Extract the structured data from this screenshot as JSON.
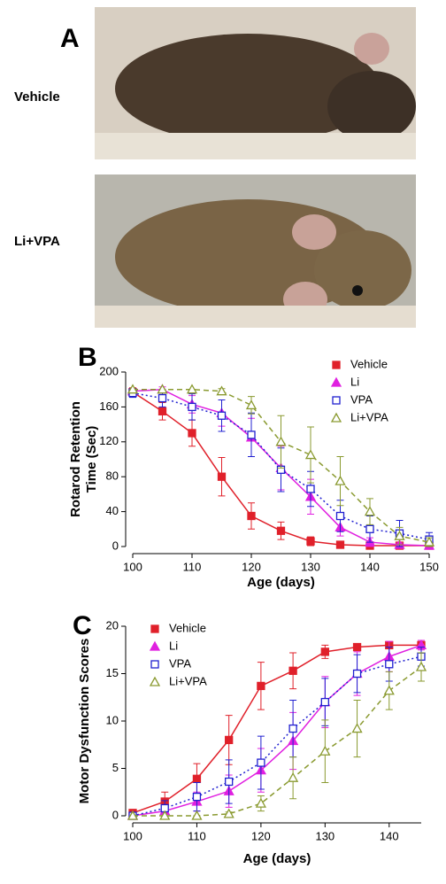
{
  "figure": {
    "panel_a": {
      "label": "A",
      "photo_labels": [
        "Vehicle",
        "Li+VPA"
      ]
    }
  },
  "chart_data": [
    {
      "type": "line",
      "panel_label": "B",
      "x_label": "Age (days)",
      "y_label": [
        "Rotarod Retention",
        "Time (Sec)"
      ],
      "x": [
        100,
        105,
        110,
        115,
        120,
        125,
        130,
        135,
        140,
        145,
        150
      ],
      "xlim": [
        100,
        150
      ],
      "xticks": [
        100,
        110,
        120,
        130,
        140,
        150
      ],
      "ylim": [
        0,
        200
      ],
      "yticks": [
        0,
        40,
        80,
        120,
        160,
        200
      ],
      "legend": "upper-right",
      "series": [
        {
          "name": "Vehicle",
          "color": "#e0202a",
          "marker": "square-filled",
          "line": "solid",
          "values": [
            177,
            155,
            130,
            80,
            35,
            18,
            6,
            2,
            1,
            1,
            1
          ],
          "errors": [
            5,
            10,
            15,
            22,
            15,
            10,
            5,
            2,
            1,
            1,
            1
          ]
        },
        {
          "name": "Li",
          "color": "#e020e0",
          "marker": "triangle-filled",
          "line": "solid",
          "values": [
            178,
            180,
            163,
            153,
            125,
            90,
            57,
            22,
            5,
            2,
            1
          ],
          "errors": [
            3,
            3,
            10,
            15,
            22,
            25,
            20,
            10,
            5,
            2,
            1
          ]
        },
        {
          "name": "VPA",
          "color": "#2020d0",
          "marker": "square-open",
          "line": "dotted",
          "values": [
            176,
            170,
            160,
            150,
            128,
            88,
            66,
            35,
            20,
            15,
            8
          ],
          "errors": [
            5,
            10,
            15,
            18,
            25,
            25,
            20,
            18,
            15,
            15,
            8
          ]
        },
        {
          "name": "Li+VPA",
          "color": "#8a9a30",
          "marker": "triangle-open",
          "line": "dashed",
          "values": [
            180,
            180,
            180,
            178,
            162,
            120,
            105,
            75,
            40,
            12,
            5
          ],
          "errors": [
            0,
            0,
            0,
            3,
            10,
            30,
            32,
            28,
            15,
            10,
            5
          ]
        }
      ]
    },
    {
      "type": "line",
      "panel_label": "C",
      "x_label": "Age (days)",
      "y_label": [
        "Motor Dysfunction Scores"
      ],
      "x": [
        100,
        105,
        110,
        115,
        120,
        125,
        130,
        135,
        140,
        145
      ],
      "xlim": [
        100,
        145
      ],
      "xticks": [
        100,
        110,
        120,
        130,
        140
      ],
      "ylim": [
        0,
        20
      ],
      "yticks": [
        0,
        5,
        10,
        15,
        20
      ],
      "legend": "upper-left",
      "series": [
        {
          "name": "Vehicle",
          "color": "#e0202a",
          "marker": "square-filled",
          "line": "solid",
          "values": [
            0.3,
            1.5,
            3.9,
            8,
            13.7,
            15.3,
            17.3,
            17.8,
            18,
            18
          ],
          "errors": [
            0.3,
            1,
            1.6,
            2.6,
            2.5,
            1.9,
            0.7,
            0.3,
            0.2,
            0.2
          ]
        },
        {
          "name": "Li",
          "color": "#e020e0",
          "marker": "triangle-filled",
          "line": "solid",
          "values": [
            0,
            0.5,
            1.5,
            2.6,
            4.8,
            7.9,
            12,
            15,
            16.8,
            18
          ],
          "errors": [
            0,
            0.5,
            1,
            1.7,
            2.3,
            3,
            2.7,
            2.3,
            1.6,
            0.5
          ]
        },
        {
          "name": "VPA",
          "color": "#2020d0",
          "marker": "square-open",
          "line": "dotted",
          "values": [
            0,
            0.8,
            2,
            3.6,
            5.6,
            9.2,
            12,
            15,
            16,
            16.8
          ],
          "errors": [
            0,
            0.8,
            1.5,
            2.3,
            2.8,
            3,
            2.5,
            2,
            1.8,
            1
          ]
        },
        {
          "name": "Li+VPA",
          "color": "#8a9a30",
          "marker": "triangle-open",
          "line": "dashed",
          "values": [
            0,
            0,
            0,
            0.2,
            1.3,
            4,
            6.8,
            9.2,
            13.2,
            15.7
          ],
          "errors": [
            0,
            0,
            0,
            0.2,
            0.8,
            2.2,
            3.3,
            3,
            2,
            1.5
          ]
        }
      ]
    }
  ]
}
